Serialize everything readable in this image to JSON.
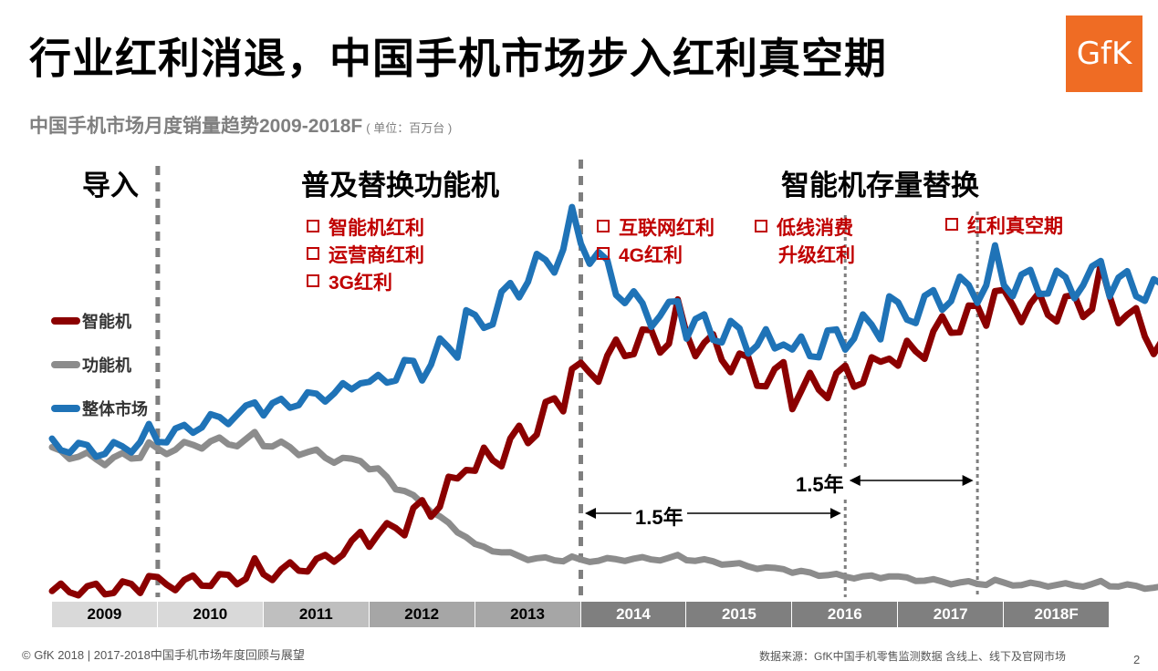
{
  "header": {
    "title": "行业红利消退，中国手机市场步入红利真空期",
    "logo_text": "GfK",
    "subtitle": "中国手机市场月度销量趋势2009-2018F",
    "unit": "( 单位：百万台 )"
  },
  "phases": {
    "intro": "导入",
    "feature": "普及替换功能机",
    "smart": "智能机存量替换"
  },
  "drivers": {
    "group1": [
      "智能机红利",
      "运营商红利",
      "3G红利"
    ],
    "group2": [
      "互联网红利",
      "4G红利"
    ],
    "group3": [
      "低线消费",
      "升级红利"
    ],
    "group4": [
      "红利真空期"
    ]
  },
  "gaps": [
    "1.5年",
    "1.5年"
  ],
  "footer": {
    "copyright": "© GfK 2018 | 2017-2018中国手机市场年度回顾与展望",
    "source": "数据来源：GfK中国手机零售监测数据 含线上、线下及官网市场",
    "page": "2"
  },
  "chart_data": {
    "type": "line",
    "categories": [
      "2009",
      "2010",
      "2011",
      "2012",
      "2013",
      "2014",
      "2015",
      "2016",
      "2017",
      "2018F"
    ],
    "x_step": "month",
    "ylim": [
      0,
      60
    ],
    "grid": false,
    "legend_position": "left",
    "series": [
      {
        "name": "智能机",
        "color": "#8b0000",
        "anchors": [
          [
            0,
            1
          ],
          [
            6,
            1.3
          ],
          [
            12,
            2.1
          ],
          [
            18,
            2.7
          ],
          [
            24,
            3.7
          ],
          [
            30,
            5.5
          ],
          [
            36,
            9.5
          ],
          [
            42,
            14
          ],
          [
            48,
            21
          ],
          [
            54,
            27
          ],
          [
            60,
            36
          ],
          [
            66,
            42
          ],
          [
            72,
            43
          ],
          [
            78,
            38.5
          ],
          [
            84,
            33.5
          ],
          [
            90,
            36
          ],
          [
            96,
            38.5
          ],
          [
            102,
            45
          ],
          [
            108,
            48
          ],
          [
            114,
            47.5
          ],
          [
            120,
            49
          ],
          [
            126,
            41
          ],
          [
            132,
            44
          ],
          [
            138,
            40
          ],
          [
            144,
            43
          ],
          [
            150,
            45
          ],
          [
            155,
            48.5
          ]
        ]
      },
      {
        "name": "功能机",
        "color": "#8c8c8c",
        "anchors": [
          [
            0,
            24
          ],
          [
            6,
            22.5
          ],
          [
            12,
            24
          ],
          [
            18,
            25.5
          ],
          [
            24,
            25.5
          ],
          [
            30,
            23.5
          ],
          [
            36,
            21.5
          ],
          [
            42,
            15.5
          ],
          [
            48,
            8.5
          ],
          [
            54,
            6.4
          ],
          [
            60,
            6
          ],
          [
            66,
            6.3
          ],
          [
            72,
            6.3
          ],
          [
            78,
            5.3
          ],
          [
            84,
            4.2
          ],
          [
            90,
            3.4
          ],
          [
            96,
            3.2
          ],
          [
            102,
            2.4
          ],
          [
            108,
            2.2
          ],
          [
            114,
            2
          ],
          [
            120,
            2
          ],
          [
            126,
            1.5
          ],
          [
            132,
            2
          ],
          [
            138,
            1.5
          ],
          [
            144,
            1.6
          ],
          [
            150,
            1.6
          ],
          [
            155,
            1.2
          ]
        ]
      },
      {
        "name": "整体市场",
        "color": "#1f73b7",
        "anchors": [
          [
            0,
            25
          ],
          [
            6,
            24
          ],
          [
            12,
            26
          ],
          [
            18,
            29
          ],
          [
            24,
            31
          ],
          [
            30,
            33
          ],
          [
            36,
            35
          ],
          [
            42,
            38
          ],
          [
            48,
            44
          ],
          [
            54,
            53
          ],
          [
            60,
            59
          ],
          [
            66,
            48
          ],
          [
            72,
            45
          ],
          [
            78,
            43
          ],
          [
            84,
            40
          ],
          [
            90,
            43
          ],
          [
            96,
            46
          ],
          [
            102,
            50
          ],
          [
            108,
            52
          ],
          [
            114,
            51.5
          ],
          [
            120,
            52
          ],
          [
            126,
            50
          ],
          [
            132,
            47
          ],
          [
            138,
            45
          ],
          [
            144,
            47
          ],
          [
            150,
            48
          ],
          [
            155,
            50
          ]
        ]
      }
    ]
  }
}
